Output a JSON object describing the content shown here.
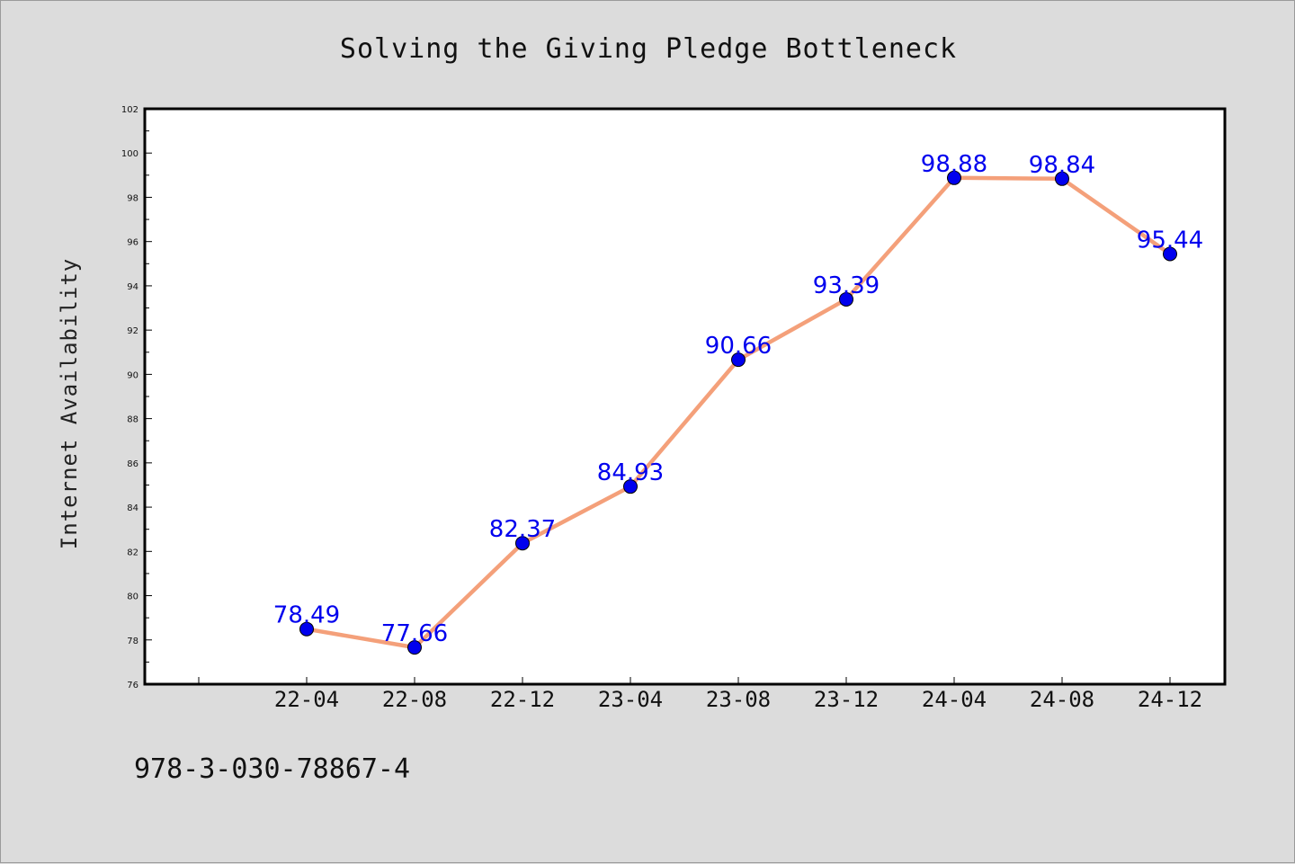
{
  "chart_data": {
    "type": "line",
    "title": "Solving the Giving Pledge Bottleneck",
    "xlabel": "",
    "ylabel": "Internet Availability",
    "categories": [
      "22-04",
      "22-08",
      "22-12",
      "23-04",
      "23-08",
      "23-12",
      "24-04",
      "24-08",
      "24-12"
    ],
    "series": [
      {
        "values": [
          78.49,
          77.66,
          82.37,
          84.93,
          90.66,
          93.39,
          98.88,
          98.84,
          95.44
        ],
        "labels": [
          "78.49",
          "77.66",
          "82.37",
          "84.93",
          "90.66",
          "93.39",
          "98.88",
          "98.84",
          "95.44"
        ],
        "line_color": "#f4a07a",
        "marker_color": "#0000ee"
      }
    ],
    "ylim": [
      76,
      102
    ],
    "yticks": [
      76,
      78,
      80,
      82,
      84,
      86,
      88,
      90,
      92,
      94,
      96,
      98,
      100,
      102
    ],
    "grid": false,
    "legend": "none",
    "footnote": "978-3-030-78867-4"
  }
}
